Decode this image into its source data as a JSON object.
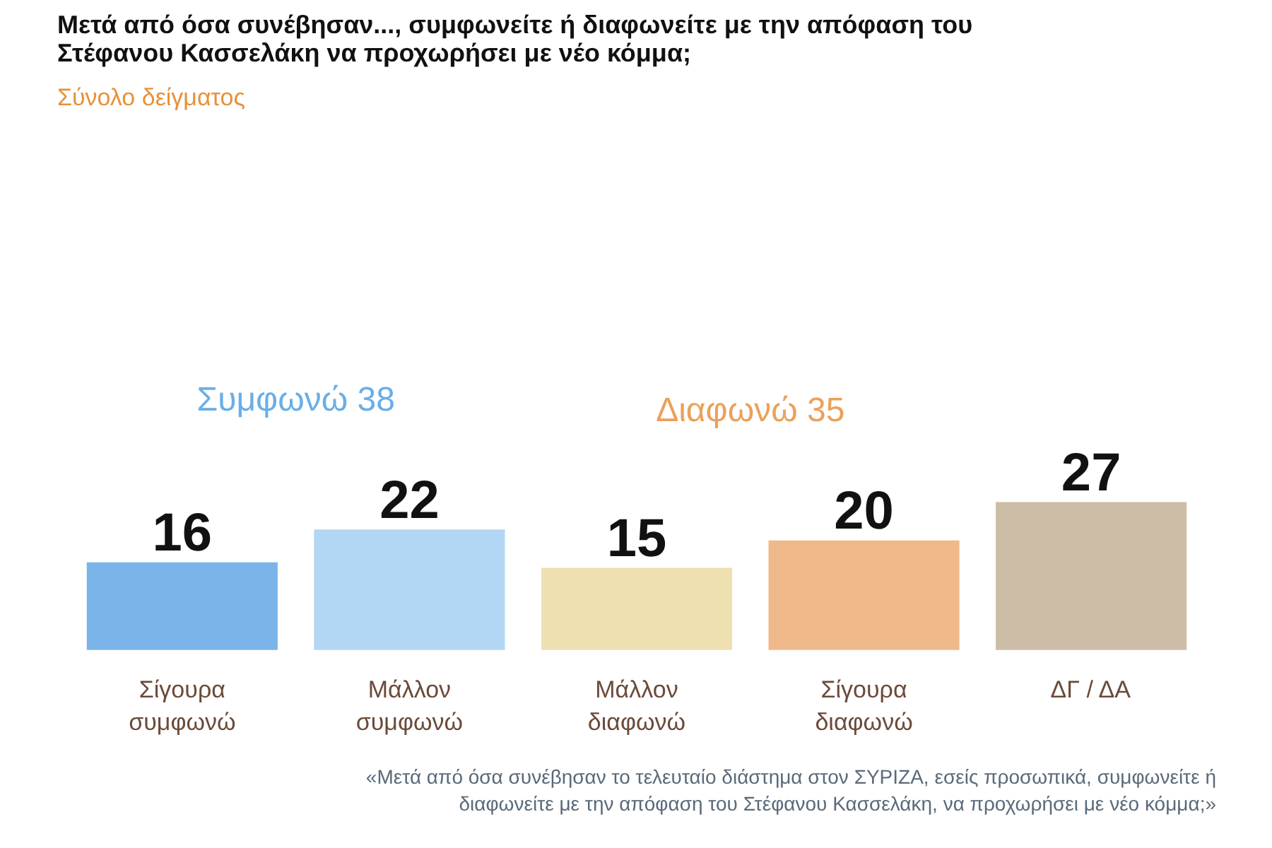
{
  "chart_data": {
    "type": "bar",
    "title": "Μετά από όσα συνέβησαν..., συμφωνείτε ή διαφωνείτε με την απόφαση του Στέφανου Κασσελάκη να προχωρήσει με νέο κόμμα;",
    "subtitle": "Σύνολο δείγματος",
    "categories": [
      "Σίγουρα συμφωνώ",
      "Μάλλον συμφωνώ",
      "Μάλλον διαφωνώ",
      "Σίγουρα διαφωνώ",
      "ΔΓ / ΔΑ"
    ],
    "values": [
      16,
      22,
      15,
      20,
      27
    ],
    "colors": [
      "#7ab4e8",
      "#b4d6f5",
      "#efe0b2",
      "#f0b98a",
      "#cdbca6"
    ],
    "data_labels": true,
    "annotations": [
      "Συμφωνώ 38",
      "Διαφωνώ 35",
      "«Μετά από όσα συνέβησαν το τελευταίο διάστημα στον ΣΥΡΙΖΑ, εσείς προσωπικά, συμφωνείτε ή διαφωνείτε με την απόφαση του Στέφανου Κασσελάκη, να προχωρήσει με νέο κόμμα;»"
    ]
  }
}
